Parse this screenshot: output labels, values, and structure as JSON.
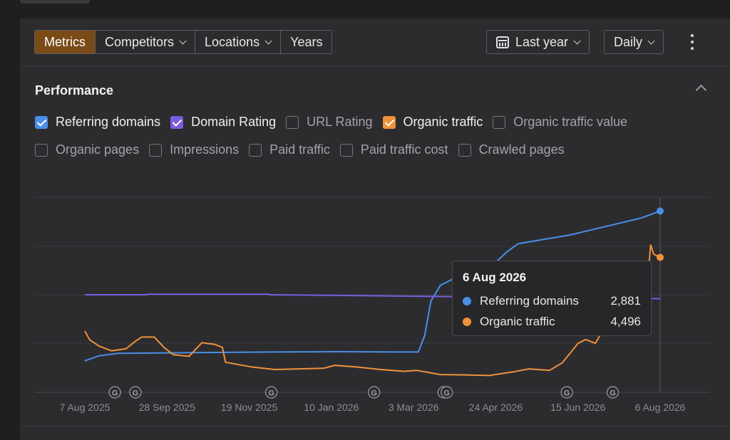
{
  "toolbar": {
    "tabs": [
      {
        "label": "Metrics",
        "active": true,
        "has_dropdown": false
      },
      {
        "label": "Competitors",
        "active": false,
        "has_dropdown": true
      },
      {
        "label": "Locations",
        "active": false,
        "has_dropdown": true
      },
      {
        "label": "Years",
        "active": false,
        "has_dropdown": false
      }
    ],
    "date_range": "Last year",
    "granularity": "Daily",
    "more_icon": "kebab-icon",
    "calendar_icon": "calendar-icon"
  },
  "performance": {
    "title": "Performance",
    "metrics": [
      {
        "label": "Referring domains",
        "checked": true,
        "color": "#4a8fe6"
      },
      {
        "label": "Domain Rating",
        "checked": true,
        "color": "#7b5ce0"
      },
      {
        "label": "URL Rating",
        "checked": false,
        "color": ""
      },
      {
        "label": "Organic traffic",
        "checked": true,
        "color": "#f0913a"
      },
      {
        "label": "Organic traffic value",
        "checked": false,
        "color": ""
      },
      {
        "label": "Organic pages",
        "checked": false,
        "color": ""
      },
      {
        "label": "Impressions",
        "checked": false,
        "color": ""
      },
      {
        "label": "Paid traffic",
        "checked": false,
        "color": ""
      },
      {
        "label": "Paid traffic cost",
        "checked": false,
        "color": ""
      },
      {
        "label": "Crawled pages",
        "checked": false,
        "color": ""
      }
    ]
  },
  "tooltip": {
    "date": "6 Aug 2026",
    "rows": [
      {
        "name": "Referring domains",
        "value": "2,881",
        "color": "#4a8fe6"
      },
      {
        "name": "Organic traffic",
        "value": "4,496",
        "color": "#f0913a"
      }
    ]
  },
  "chart_data": {
    "type": "line",
    "x_tick_labels": [
      "7 Aug 2025",
      "28 Sep 2025",
      "19 Nov 2025",
      "10 Jan 2026",
      "3 Mar 2026",
      "24 Apr 2026",
      "15 Jun 2026",
      "6 Aug 2026"
    ],
    "x_range": [
      "2025-08-07",
      "2026-08-06"
    ],
    "y_tick_labels": [],
    "grid": true,
    "google_update_markers": [
      "2025-08-26",
      "2025-09-08",
      "2025-12-03",
      "2026-02-06",
      "2026-03-22",
      "2026-03-24",
      "2026-06-08",
      "2026-07-07"
    ],
    "series": [
      {
        "name": "Referring domains",
        "color": "#4a8fe6",
        "norm_max": 3100,
        "points": [
          [
            "2025-08-07",
            500
          ],
          [
            "2025-08-16",
            580
          ],
          [
            "2025-08-28",
            620
          ],
          [
            "2025-10-15",
            630
          ],
          [
            "2025-12-05",
            640
          ],
          [
            "2026-01-15",
            645
          ],
          [
            "2026-02-20",
            640
          ],
          [
            "2026-03-06",
            640
          ],
          [
            "2026-03-10",
            900
          ],
          [
            "2026-03-14",
            1450
          ],
          [
            "2026-03-20",
            1700
          ],
          [
            "2026-04-01",
            1850
          ],
          [
            "2026-04-20",
            1970
          ],
          [
            "2026-05-01",
            2230
          ],
          [
            "2026-05-08",
            2360
          ],
          [
            "2026-05-22",
            2420
          ],
          [
            "2026-06-10",
            2500
          ],
          [
            "2026-07-05",
            2650
          ],
          [
            "2026-07-25",
            2770
          ],
          [
            "2026-08-06",
            2881
          ]
        ]
      },
      {
        "name": "Domain Rating",
        "color": "#7b5ce0",
        "norm_max": 100,
        "points": [
          [
            "2025-08-07",
            50
          ],
          [
            "2025-09-15",
            50
          ],
          [
            "2025-09-16",
            50.3
          ],
          [
            "2025-12-01",
            50.3
          ],
          [
            "2025-12-02",
            50
          ],
          [
            "2026-08-06",
            48
          ]
        ]
      },
      {
        "name": "Organic traffic",
        "color": "#f0913a",
        "norm_max": 6500,
        "points": [
          [
            "2025-08-07",
            2040
          ],
          [
            "2025-08-10",
            1750
          ],
          [
            "2025-08-16",
            1540
          ],
          [
            "2025-08-24",
            1380
          ],
          [
            "2025-09-02",
            1450
          ],
          [
            "2025-09-08",
            1700
          ],
          [
            "2025-09-12",
            1840
          ],
          [
            "2025-09-20",
            1840
          ],
          [
            "2025-09-26",
            1500
          ],
          [
            "2025-10-02",
            1250
          ],
          [
            "2025-10-12",
            1200
          ],
          [
            "2025-10-20",
            1650
          ],
          [
            "2025-10-28",
            1600
          ],
          [
            "2025-11-02",
            1500
          ],
          [
            "2025-11-04",
            1000
          ],
          [
            "2025-11-20",
            850
          ],
          [
            "2025-12-05",
            760
          ],
          [
            "2025-12-20",
            780
          ],
          [
            "2026-01-05",
            800
          ],
          [
            "2026-01-12",
            900
          ],
          [
            "2026-01-25",
            850
          ],
          [
            "2026-02-10",
            760
          ],
          [
            "2026-02-25",
            700
          ],
          [
            "2026-03-05",
            730
          ],
          [
            "2026-03-20",
            590
          ],
          [
            "2026-04-05",
            580
          ],
          [
            "2026-04-20",
            560
          ],
          [
            "2026-05-05",
            680
          ],
          [
            "2026-05-15",
            780
          ],
          [
            "2026-05-28",
            730
          ],
          [
            "2026-06-05",
            980
          ],
          [
            "2026-06-10",
            1300
          ],
          [
            "2026-06-15",
            1630
          ],
          [
            "2026-06-20",
            1760
          ],
          [
            "2026-06-26",
            1630
          ],
          [
            "2026-07-05",
            2450
          ],
          [
            "2026-07-12",
            2950
          ],
          [
            "2026-07-20",
            3330
          ],
          [
            "2026-07-24",
            3550
          ],
          [
            "2026-07-28",
            3010
          ],
          [
            "2026-07-31",
            4910
          ],
          [
            "2026-08-02",
            4600
          ],
          [
            "2026-08-06",
            4496
          ]
        ]
      }
    ]
  }
}
